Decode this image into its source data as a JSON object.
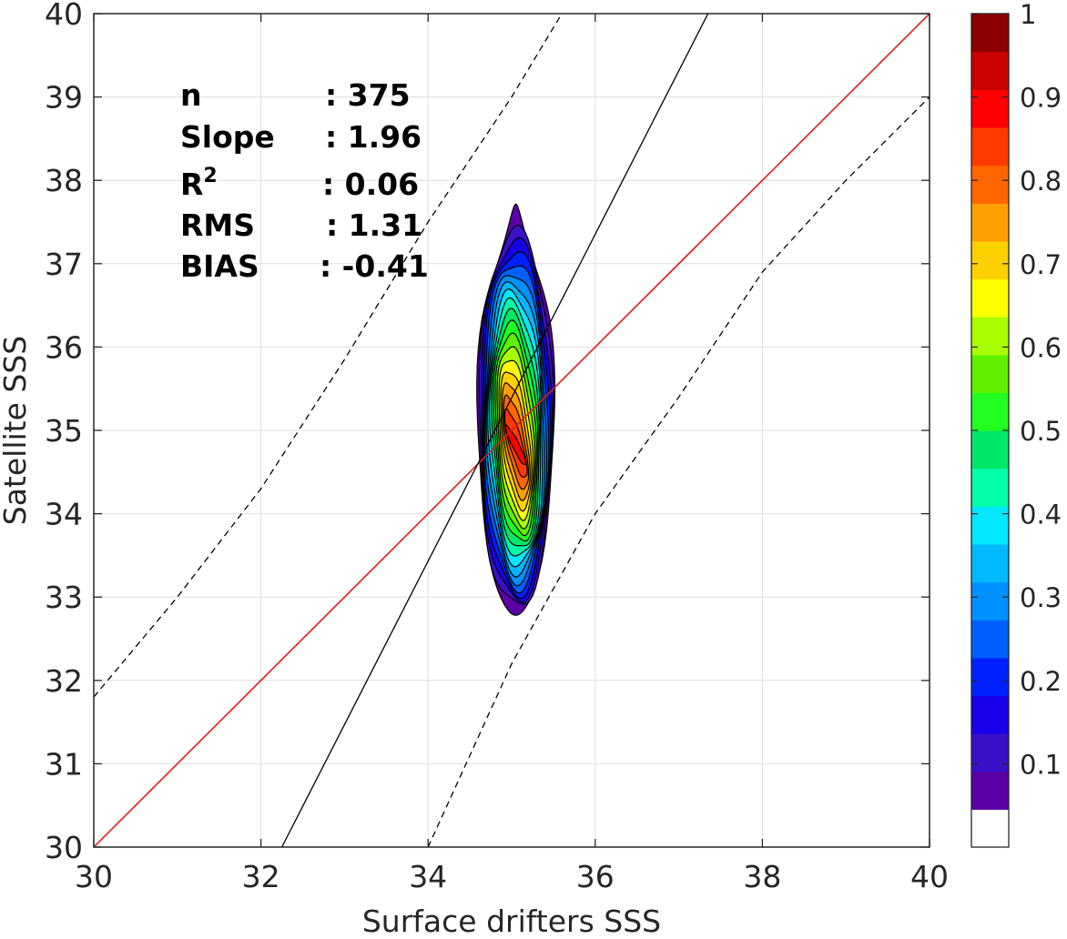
{
  "chart_data": {
    "type": "contour",
    "xlabel": "Surface drifters SSS",
    "ylabel": "Satellite SSS",
    "xlim": [
      30,
      40
    ],
    "ylim": [
      30,
      40
    ],
    "x_ticks": [
      "30",
      "32",
      "34",
      "36",
      "38",
      "40"
    ],
    "y_ticks": [
      "30",
      "31",
      "32",
      "33",
      "34",
      "35",
      "36",
      "37",
      "38",
      "39",
      "40"
    ],
    "grid": true,
    "stats": [
      {
        "label": "n",
        "value": ": 375"
      },
      {
        "label": "Slope",
        "value": ": 1.96"
      },
      {
        "label": "R",
        "sup": "2",
        "value": ": 0.06"
      },
      {
        "label": "RMS",
        "value": ": 1.31"
      },
      {
        "label": "BIAS",
        "value": ": -0.41"
      }
    ],
    "lines": [
      {
        "kind": "identity",
        "color": "#e31a1c",
        "style": "solid",
        "points": [
          [
            30,
            30
          ],
          [
            40,
            40
          ]
        ]
      },
      {
        "kind": "regression",
        "color": "#000000",
        "style": "solid",
        "points": [
          [
            32.25,
            30
          ],
          [
            37.35,
            40
          ]
        ]
      },
      {
        "kind": "upper-bound",
        "color": "#000000",
        "style": "dashed",
        "points": [
          [
            30,
            31.8
          ],
          [
            31,
            33.0
          ],
          [
            32,
            34.3
          ],
          [
            33,
            35.85
          ],
          [
            34,
            37.5
          ],
          [
            35,
            39.0
          ],
          [
            35.6,
            40
          ]
        ]
      },
      {
        "kind": "lower-bound",
        "color": "#000000",
        "style": "dashed",
        "points": [
          [
            34.0,
            30
          ],
          [
            35.0,
            32.2
          ],
          [
            36.0,
            34.0
          ],
          [
            37.0,
            35.4
          ],
          [
            38.0,
            36.9
          ],
          [
            39.0,
            38.0
          ],
          [
            40.0,
            39.0
          ]
        ]
      }
    ],
    "density": {
      "center": [
        35.05,
        35.6
      ],
      "levels": [
        0.05,
        0.1,
        0.15,
        0.2,
        0.25,
        0.3,
        0.35,
        0.4,
        0.45,
        0.5,
        0.55,
        0.6,
        0.65,
        0.7,
        0.75,
        0.8,
        0.85,
        0.9,
        0.95
      ]
    },
    "colorbar": {
      "min": 0,
      "max": 1,
      "ticks": [
        "0.1",
        "0.2",
        "0.3",
        "0.4",
        "0.5",
        "0.6",
        "0.7",
        "0.8",
        "0.9",
        "1"
      ],
      "tick_values": [
        0.1,
        0.2,
        0.3,
        0.4,
        0.5,
        0.6,
        0.7,
        0.8,
        0.9,
        1.0
      ],
      "colors": [
        "#ffffff",
        "#5a00a6",
        "#3a10c8",
        "#1800e8",
        "#0020ff",
        "#0060ff",
        "#0090ff",
        "#00b8ff",
        "#00e8ff",
        "#00ffa8",
        "#00e868",
        "#20ff20",
        "#60f000",
        "#a8ff00",
        "#ffff00",
        "#ffd000",
        "#ff9e00",
        "#ff6600",
        "#ff3a00",
        "#ff0000",
        "#cc0000",
        "#8c0000"
      ]
    }
  }
}
